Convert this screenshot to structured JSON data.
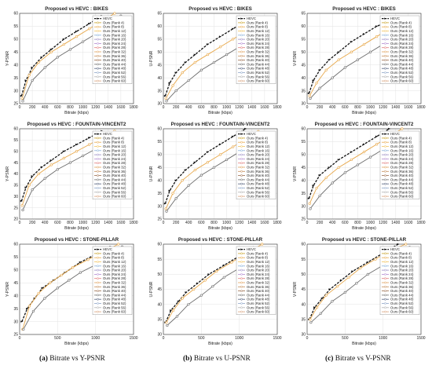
{
  "colors": {
    "hevc": "#111111",
    "ranks": [
      "#c9a227",
      "#e8a84a",
      "#f2c35c",
      "#88b1d9",
      "#9a8bc4",
      "#b28ad0",
      "#e07a7a",
      "#e0a05a",
      "#c58c56",
      "#9a6a4a",
      "#6c6c6c",
      "#4f5c7a",
      "#8ea6c8",
      "#b0b0b0",
      "#d9a07a"
    ]
  },
  "captions": [
    {
      "letter": "(a)",
      "text": "Bitrate vs Y-PSNR"
    },
    {
      "letter": "(b)",
      "text": "Bitrate vs U-PSNR"
    },
    {
      "letter": "(c)",
      "text": "Bitrate vs V-PSNR"
    }
  ],
  "chart_data": [
    {
      "type": "line",
      "title": "Proposed vs HEVC : BIKES",
      "xlabel": "Bitrate (kbps)",
      "ylabel": "Y-PSNR",
      "xlim": [
        0,
        1800
      ],
      "ylim": [
        25,
        60
      ],
      "xticks": [
        0,
        200,
        400,
        600,
        800,
        1000,
        1200,
        1400,
        1600,
        1800
      ],
      "yticks": [
        25,
        30,
        35,
        40,
        45,
        50,
        55,
        60
      ],
      "legend_position": "top-right",
      "series": [
        {
          "name": "HEVC",
          "x": [
            30,
            100,
            200,
            350,
            500,
            700,
            900,
            1100,
            1300
          ],
          "y": [
            28,
            34,
            39,
            43,
            46,
            50,
            53,
            56,
            59
          ]
        },
        {
          "name": "Ours (Rank 4)",
          "x": [
            40,
            150,
            300,
            500,
            700,
            900,
            1100,
            1300,
            1500
          ],
          "y": [
            27,
            36,
            41,
            45,
            48,
            51,
            54,
            57,
            60
          ]
        },
        {
          "name": "Ours (Rank 60)",
          "x": [
            50,
            200,
            400,
            600,
            800,
            1000,
            1200,
            1400,
            1600
          ],
          "y": [
            26,
            34,
            39,
            43,
            46,
            49,
            52,
            55,
            59
          ]
        }
      ]
    },
    {
      "type": "line",
      "title": "Proposed vs HEVC : BIKES",
      "xlabel": "Bitrate (kbps)",
      "ylabel": "U-PSNR",
      "xlim": [
        0,
        1800
      ],
      "ylim": [
        30,
        65
      ],
      "xticks": [
        0,
        200,
        400,
        600,
        800,
        1000,
        1200,
        1400,
        1600,
        1800
      ],
      "yticks": [
        30,
        35,
        40,
        45,
        50,
        55,
        60,
        65
      ],
      "legend_position": "top-right",
      "series": [
        {
          "name": "HEVC",
          "x": [
            30,
            100,
            200,
            350,
            500,
            700,
            900,
            1100,
            1300
          ],
          "y": [
            33,
            38,
            42,
            46,
            49,
            53,
            56,
            59,
            62
          ]
        },
        {
          "name": "Ours (Rank 4)",
          "x": [
            40,
            150,
            300,
            500,
            700,
            900,
            1100,
            1300,
            1500
          ],
          "y": [
            32,
            37,
            42,
            46,
            49,
            52,
            55,
            58,
            61
          ]
        },
        {
          "name": "Ours (Rank 60)",
          "x": [
            50,
            200,
            400,
            600,
            800,
            1000,
            1200,
            1400,
            1600
          ],
          "y": [
            31,
            35,
            39,
            43,
            46,
            49,
            52,
            55,
            58
          ]
        }
      ]
    },
    {
      "type": "line",
      "title": "Proposed vs HEVC : BIKES",
      "xlabel": "Bitrate (kbps)",
      "ylabel": "V-PSNR",
      "xlim": [
        0,
        1800
      ],
      "ylim": [
        30,
        65
      ],
      "xticks": [
        0,
        200,
        400,
        600,
        800,
        1000,
        1200,
        1400,
        1600,
        1800
      ],
      "yticks": [
        30,
        35,
        40,
        45,
        50,
        55,
        60,
        65
      ],
      "legend_position": "top-right",
      "series": [
        {
          "name": "HEVC",
          "x": [
            30,
            100,
            200,
            350,
            500,
            700,
            900,
            1100,
            1300
          ],
          "y": [
            34,
            39,
            43,
            47,
            50,
            54,
            57,
            60,
            62
          ]
        },
        {
          "name": "Ours (Rank 4)",
          "x": [
            40,
            150,
            300,
            500,
            700,
            900,
            1100,
            1300,
            1500
          ],
          "y": [
            33,
            38,
            43,
            47,
            50,
            53,
            56,
            59,
            62
          ]
        },
        {
          "name": "Ours (Rank 60)",
          "x": [
            50,
            200,
            400,
            600,
            800,
            1000,
            1200,
            1400,
            1600
          ],
          "y": [
            32,
            36,
            40,
            44,
            47,
            50,
            53,
            56,
            59
          ]
        }
      ]
    },
    {
      "type": "line",
      "title": "Proposed vs HEVC : FOUNTAIN-VINCENT2",
      "xlabel": "Bitrate (kbps)",
      "ylabel": "Y-PSNR",
      "xlim": [
        0,
        1800
      ],
      "ylim": [
        20,
        60
      ],
      "xticks": [
        0,
        200,
        400,
        600,
        800,
        1000,
        1200,
        1400,
        1600,
        1800
      ],
      "yticks": [
        20,
        25,
        30,
        35,
        40,
        45,
        50,
        55,
        60
      ],
      "legend_position": "top-right",
      "series": [
        {
          "name": "HEVC",
          "x": [
            30,
            100,
            200,
            350,
            500,
            700,
            900,
            1100,
            1300
          ],
          "y": [
            28,
            34,
            39,
            43,
            46,
            50,
            53,
            56,
            59
          ]
        },
        {
          "name": "Ours (Rank 4)",
          "x": [
            40,
            150,
            300,
            500,
            700,
            900,
            1100,
            1300,
            1500
          ],
          "y": [
            26,
            35,
            40,
            44,
            47,
            50,
            53,
            56,
            59
          ]
        },
        {
          "name": "Ours (Rank 60)",
          "x": [
            50,
            200,
            400,
            600,
            800,
            1000,
            1200,
            1400,
            1600
          ],
          "y": [
            24,
            33,
            38,
            42,
            45,
            48,
            51,
            54,
            58
          ]
        }
      ]
    },
    {
      "type": "line",
      "title": "Proposed vs HEVC : FOUNTAIN-VINCENT2",
      "xlabel": "Bitrate (kbps)",
      "ylabel": "U-PSNR",
      "xlim": [
        0,
        1800
      ],
      "ylim": [
        25,
        60
      ],
      "xticks": [
        0,
        200,
        400,
        600,
        800,
        1000,
        1200,
        1400,
        1600,
        1800
      ],
      "yticks": [
        25,
        30,
        35,
        40,
        45,
        50,
        55,
        60
      ],
      "legend_position": "top-right",
      "series": [
        {
          "name": "HEVC",
          "x": [
            30,
            100,
            200,
            350,
            500,
            700,
            900,
            1100,
            1300
          ],
          "y": [
            31,
            36,
            40,
            44,
            47,
            51,
            54,
            57,
            60
          ]
        },
        {
          "name": "Ours (Rank 4)",
          "x": [
            40,
            150,
            300,
            500,
            700,
            900,
            1100,
            1300,
            1500
          ],
          "y": [
            29,
            35,
            40,
            44,
            47,
            50,
            53,
            56,
            59
          ]
        },
        {
          "name": "Ours (Rank 60)",
          "x": [
            50,
            200,
            400,
            600,
            800,
            1000,
            1200,
            1400,
            1600
          ],
          "y": [
            28,
            33,
            38,
            42,
            45,
            48,
            51,
            54,
            58
          ]
        }
      ]
    },
    {
      "type": "line",
      "title": "Proposed vs HEVC : FOUNTAIN-VINCENT2",
      "xlabel": "Bitrate (kbps)",
      "ylabel": "V-PSNR",
      "xlim": [
        0,
        1800
      ],
      "ylim": [
        25,
        60
      ],
      "xticks": [
        0,
        200,
        400,
        600,
        800,
        1000,
        1200,
        1400,
        1600,
        1800
      ],
      "yticks": [
        25,
        30,
        35,
        40,
        45,
        50,
        55,
        60
      ],
      "legend_position": "top-right",
      "series": [
        {
          "name": "HEVC",
          "x": [
            30,
            100,
            200,
            350,
            500,
            700,
            900,
            1100,
            1300
          ],
          "y": [
            33,
            38,
            42,
            45,
            48,
            51,
            54,
            57,
            60
          ]
        },
        {
          "name": "Ours (Rank 4)",
          "x": [
            40,
            150,
            300,
            500,
            700,
            900,
            1100,
            1300,
            1500
          ],
          "y": [
            31,
            37,
            41,
            45,
            48,
            51,
            54,
            57,
            60
          ]
        },
        {
          "name": "Ours (Rank 60)",
          "x": [
            50,
            200,
            400,
            600,
            800,
            1000,
            1200,
            1400,
            1600
          ],
          "y": [
            29,
            34,
            39,
            43,
            46,
            49,
            52,
            55,
            58
          ]
        }
      ]
    },
    {
      "type": "line",
      "title": "Proposed vs HEVC : STONE-PILLAR",
      "xlabel": "Bitrate (kbps)",
      "ylabel": "Y-PSNR",
      "xlim": [
        0,
        1500
      ],
      "ylim": [
        25,
        60
      ],
      "xticks": [
        0,
        500,
        1000,
        1500
      ],
      "yticks": [
        25,
        30,
        35,
        40,
        45,
        50,
        55,
        60
      ],
      "legend_position": "top-right",
      "series": [
        {
          "name": "HEVC",
          "x": [
            30,
            100,
            200,
            300,
            450,
            600,
            800,
            1000,
            1200
          ],
          "y": [
            30,
            35,
            39,
            43,
            46,
            49,
            53,
            56,
            59
          ]
        },
        {
          "name": "Ours (Rank 4)",
          "x": [
            40,
            130,
            250,
            400,
            550,
            700,
            900,
            1100,
            1300
          ],
          "y": [
            27,
            36,
            41,
            45,
            48,
            51,
            54,
            57,
            60
          ]
        },
        {
          "name": "Ours (Rank 60)",
          "x": [
            50,
            180,
            330,
            500,
            650,
            800,
            1000,
            1200,
            1350
          ],
          "y": [
            27,
            34,
            39,
            43,
            46,
            49,
            52,
            55,
            59
          ]
        }
      ]
    },
    {
      "type": "line",
      "title": "Proposed vs HEVC : STONE-PILLAR",
      "xlabel": "Bitrate (kbps)",
      "ylabel": "U-PSNR",
      "xlim": [
        0,
        1500
      ],
      "ylim": [
        30,
        60
      ],
      "xticks": [
        0,
        500,
        1000,
        1500
      ],
      "yticks": [
        30,
        35,
        40,
        45,
        50,
        55,
        60
      ],
      "legend_position": "top-right",
      "series": [
        {
          "name": "HEVC",
          "x": [
            30,
            100,
            200,
            300,
            450,
            600,
            800,
            1000,
            1200
          ],
          "y": [
            34,
            38,
            41,
            44,
            47,
            50,
            53,
            56,
            59
          ]
        },
        {
          "name": "Ours (Rank 4)",
          "x": [
            40,
            130,
            250,
            400,
            550,
            700,
            900,
            1100,
            1300
          ],
          "y": [
            34,
            38,
            42,
            45,
            48,
            51,
            54,
            57,
            60
          ]
        },
        {
          "name": "Ours (Rank 60)",
          "x": [
            50,
            180,
            330,
            500,
            650,
            800,
            1000,
            1200,
            1350
          ],
          "y": [
            33,
            36,
            40,
            43,
            46,
            49,
            52,
            55,
            58
          ]
        }
      ]
    },
    {
      "type": "line",
      "title": "Proposed vs HEVC : STONE-PILLAR",
      "xlabel": "Bitrate (kbps)",
      "ylabel": "V-PSNR",
      "xlim": [
        0,
        1500
      ],
      "ylim": [
        30,
        60
      ],
      "xticks": [
        0,
        500,
        1000,
        1500
      ],
      "yticks": [
        30,
        35,
        40,
        45,
        50,
        55,
        60
      ],
      "legend_position": "top-right",
      "series": [
        {
          "name": "HEVC",
          "x": [
            30,
            100,
            200,
            300,
            450,
            600,
            800,
            1000,
            1200
          ],
          "y": [
            35,
            39,
            42,
            45,
            48,
            51,
            54,
            57,
            60
          ]
        },
        {
          "name": "Ours (Rank 4)",
          "x": [
            40,
            130,
            250,
            400,
            550,
            700,
            900,
            1100,
            1300
          ],
          "y": [
            35,
            39,
            43,
            46,
            49,
            52,
            55,
            58,
            60
          ]
        },
        {
          "name": "Ours (Rank 60)",
          "x": [
            50,
            180,
            330,
            500,
            650,
            800,
            1000,
            1200,
            1350
          ],
          "y": [
            34,
            37,
            41,
            44,
            47,
            50,
            53,
            56,
            59
          ]
        }
      ]
    }
  ],
  "legend_entries": [
    "HEVC",
    "Ours (Rank 4)",
    "Ours (Rank 8)",
    "Ours (Rank 12)",
    "Ours (Rank 16)",
    "Ours (Rank 20)",
    "Ours (Rank 24)",
    "Ours (Rank 28)",
    "Ours (Rank 32)",
    "Ours (Rank 36)",
    "Ours (Rank 40)",
    "Ours (Rank 44)",
    "Ours (Rank 48)",
    "Ours (Rank 52)",
    "Ours (Rank 56)",
    "Ours (Rank 60)"
  ]
}
